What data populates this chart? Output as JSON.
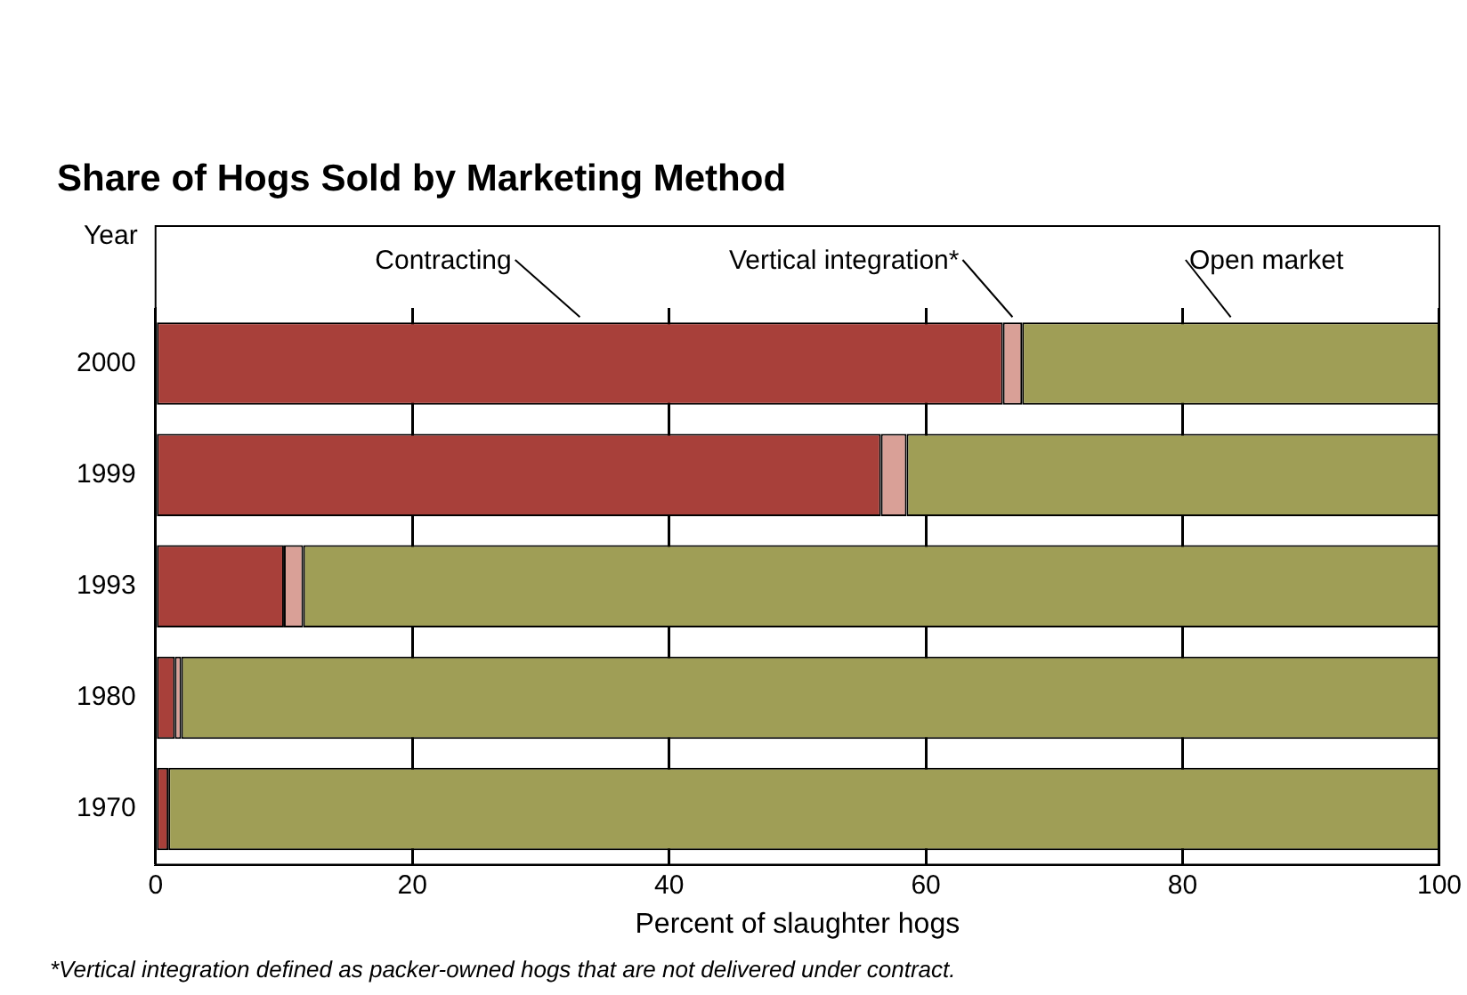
{
  "chart_data": {
    "type": "bar",
    "orientation": "horizontal",
    "stacked": true,
    "title": "Share of Hogs Sold by Marketing Method",
    "ylabel": "Year",
    "xlabel": "Percent of slaughter hogs",
    "categories": [
      "2000",
      "1999",
      "1993",
      "1980",
      "1970"
    ],
    "series": [
      {
        "name": "Contracting",
        "color": "#a8403a",
        "values": [
          66,
          56.5,
          10,
          1.5,
          1
        ]
      },
      {
        "name": "Vertical integration*",
        "color": "#d9a097",
        "values": [
          1.5,
          2,
          1.5,
          0.5,
          0
        ]
      },
      {
        "name": "Open market",
        "color": "#9f9e56",
        "values": [
          32.5,
          41.5,
          88.5,
          98,
          99
        ]
      }
    ],
    "xlim": [
      0,
      100
    ],
    "xticks": [
      0,
      20,
      40,
      60,
      80,
      100
    ],
    "grid": "x",
    "annotations": [
      "*Vertical integration defined as packer-owned hogs that are not delivered under contract."
    ]
  }
}
